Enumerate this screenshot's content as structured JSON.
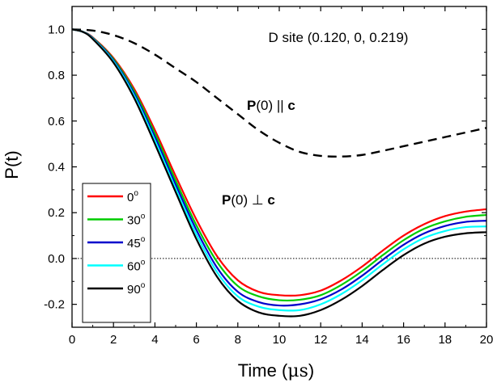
{
  "chart_data": {
    "type": "line",
    "xlabel_main": "Time (",
    "xlabel_unit": "μs",
    "xlabel_close": ")",
    "ylabel": "P(t)",
    "xlim": [
      0,
      20
    ],
    "ylim": [
      -0.3,
      1.1
    ],
    "x_ticks": [
      "0",
      "2",
      "4",
      "6",
      "8",
      "10",
      "12",
      "14",
      "16",
      "18",
      "20"
    ],
    "y_ticks": [
      "-0.2",
      "0.0",
      "0.2",
      "0.4",
      "0.6",
      "0.8",
      "1.0"
    ],
    "site_label": "D site (0.120, 0, 0.219)",
    "parallel_label_bold": "P",
    "parallel_label_rest": "(0) || ",
    "parallel_label_c": "c",
    "perp_label_bold": "P",
    "perp_label_rest": "(0) ⊥ ",
    "perp_label_c": "c",
    "reference_line": {
      "y": 0.0,
      "style": "dotted"
    },
    "series": [
      {
        "name": "P(0) || c",
        "color": "#000000",
        "dash": true,
        "points": [
          [
            0,
            1.0
          ],
          [
            1,
            0.995
          ],
          [
            2,
            0.975
          ],
          [
            3,
            0.94
          ],
          [
            4,
            0.89
          ],
          [
            5,
            0.83
          ],
          [
            6,
            0.77
          ],
          [
            7,
            0.7
          ],
          [
            8,
            0.63
          ],
          [
            9,
            0.56
          ],
          [
            10,
            0.505
          ],
          [
            11,
            0.465
          ],
          [
            12,
            0.448
          ],
          [
            13,
            0.445
          ],
          [
            14,
            0.452
          ],
          [
            15,
            0.47
          ],
          [
            16,
            0.49
          ],
          [
            17,
            0.51
          ],
          [
            18,
            0.53
          ],
          [
            19,
            0.55
          ],
          [
            20,
            0.57
          ]
        ]
      },
      {
        "name": "0",
        "color": "#ff0000",
        "points": [
          [
            0,
            1.0
          ],
          [
            0.5,
            0.99
          ],
          [
            1,
            0.965
          ],
          [
            2,
            0.875
          ],
          [
            3,
            0.74
          ],
          [
            4,
            0.56
          ],
          [
            5,
            0.36
          ],
          [
            6,
            0.17
          ],
          [
            7,
            0.01
          ],
          [
            8,
            -0.095
          ],
          [
            9,
            -0.145
          ],
          [
            10,
            -0.16
          ],
          [
            11,
            -0.16
          ],
          [
            12,
            -0.14
          ],
          [
            13,
            -0.095
          ],
          [
            14,
            -0.035
          ],
          [
            15,
            0.035
          ],
          [
            16,
            0.1
          ],
          [
            17,
            0.15
          ],
          [
            18,
            0.185
          ],
          [
            19,
            0.205
          ],
          [
            20,
            0.215
          ]
        ]
      },
      {
        "name": "30",
        "color": "#00cc00",
        "points": [
          [
            0,
            1.0
          ],
          [
            0.5,
            0.99
          ],
          [
            1,
            0.963
          ],
          [
            2,
            0.87
          ],
          [
            3,
            0.73
          ],
          [
            4,
            0.545
          ],
          [
            5,
            0.34
          ],
          [
            6,
            0.145
          ],
          [
            7,
            -0.015
          ],
          [
            8,
            -0.12
          ],
          [
            9,
            -0.165
          ],
          [
            10,
            -0.182
          ],
          [
            11,
            -0.18
          ],
          [
            12,
            -0.16
          ],
          [
            13,
            -0.115
          ],
          [
            14,
            -0.055
          ],
          [
            15,
            0.015
          ],
          [
            16,
            0.08
          ],
          [
            17,
            0.13
          ],
          [
            18,
            0.162
          ],
          [
            19,
            0.182
          ],
          [
            20,
            0.19
          ]
        ]
      },
      {
        "name": "45",
        "color": "#0000cc",
        "points": [
          [
            0,
            1.0
          ],
          [
            0.5,
            0.99
          ],
          [
            1,
            0.962
          ],
          [
            2,
            0.865
          ],
          [
            3,
            0.72
          ],
          [
            4,
            0.53
          ],
          [
            5,
            0.322
          ],
          [
            6,
            0.125
          ],
          [
            7,
            -0.04
          ],
          [
            8,
            -0.145
          ],
          [
            9,
            -0.19
          ],
          [
            10,
            -0.205
          ],
          [
            11,
            -0.2
          ],
          [
            12,
            -0.178
          ],
          [
            13,
            -0.135
          ],
          [
            14,
            -0.075
          ],
          [
            15,
            -0.005
          ],
          [
            16,
            0.06
          ],
          [
            17,
            0.11
          ],
          [
            18,
            0.142
          ],
          [
            19,
            0.16
          ],
          [
            20,
            0.165
          ]
        ]
      },
      {
        "name": "60",
        "color": "#00ffff",
        "points": [
          [
            0,
            1.0
          ],
          [
            0.5,
            0.99
          ],
          [
            1,
            0.96
          ],
          [
            2,
            0.86
          ],
          [
            3,
            0.71
          ],
          [
            4,
            0.515
          ],
          [
            5,
            0.305
          ],
          [
            6,
            0.105
          ],
          [
            7,
            -0.06
          ],
          [
            8,
            -0.165
          ],
          [
            9,
            -0.21
          ],
          [
            10,
            -0.225
          ],
          [
            11,
            -0.225
          ],
          [
            12,
            -0.2
          ],
          [
            13,
            -0.155
          ],
          [
            14,
            -0.095
          ],
          [
            15,
            -0.025
          ],
          [
            16,
            0.04
          ],
          [
            17,
            0.09
          ],
          [
            18,
            0.12
          ],
          [
            19,
            0.137
          ],
          [
            20,
            0.14
          ]
        ]
      },
      {
        "name": "90",
        "color": "#000000",
        "points": [
          [
            0,
            1.0
          ],
          [
            0.5,
            0.99
          ],
          [
            1,
            0.958
          ],
          [
            2,
            0.855
          ],
          [
            3,
            0.7
          ],
          [
            4,
            0.5
          ],
          [
            5,
            0.29
          ],
          [
            6,
            0.085
          ],
          [
            7,
            -0.08
          ],
          [
            8,
            -0.185
          ],
          [
            9,
            -0.235
          ],
          [
            10,
            -0.25
          ],
          [
            11,
            -0.25
          ],
          [
            12,
            -0.225
          ],
          [
            13,
            -0.18
          ],
          [
            14,
            -0.12
          ],
          [
            15,
            -0.05
          ],
          [
            16,
            0.015
          ],
          [
            17,
            0.065
          ],
          [
            18,
            0.095
          ],
          [
            19,
            0.11
          ],
          [
            20,
            0.115
          ]
        ]
      }
    ],
    "legend": {
      "placement": "left-middle",
      "entries": [
        {
          "label": "0",
          "sup": "o",
          "color": "#ff0000"
        },
        {
          "label": "30",
          "sup": "o",
          "color": "#00cc00"
        },
        {
          "label": "45",
          "sup": "o",
          "color": "#0000cc"
        },
        {
          "label": "60",
          "sup": "o",
          "color": "#00ffff"
        },
        {
          "label": "90",
          "sup": "o",
          "color": "#000000"
        }
      ]
    }
  }
}
